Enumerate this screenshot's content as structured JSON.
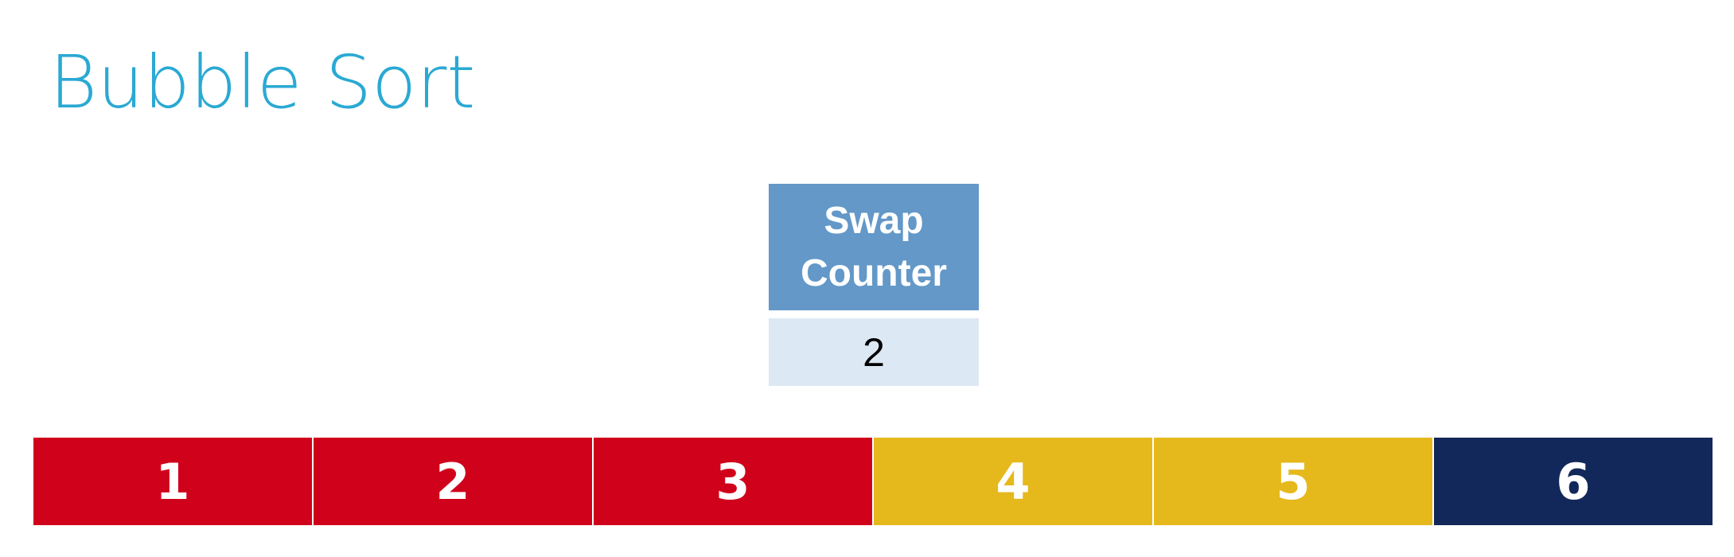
{
  "title": "Bubble Sort",
  "swap_counter": {
    "label": "Swap Counter",
    "value": "2",
    "header_color": "#6398c8",
    "value_bg_color": "#dde8f5"
  },
  "array": {
    "cells": [
      {
        "value": "1",
        "color": "#d0021b"
      },
      {
        "value": "2",
        "color": "#d0021b"
      },
      {
        "value": "3",
        "color": "#d0021b"
      },
      {
        "value": "4",
        "color": "#e5b91c"
      },
      {
        "value": "5",
        "color": "#e5b91c"
      },
      {
        "value": "6",
        "color": "#13285a"
      }
    ]
  },
  "colors": {
    "title": "#2aa9d3",
    "unsorted": "#d0021b",
    "compared": "#e5b91c",
    "sorted": "#13285a"
  }
}
